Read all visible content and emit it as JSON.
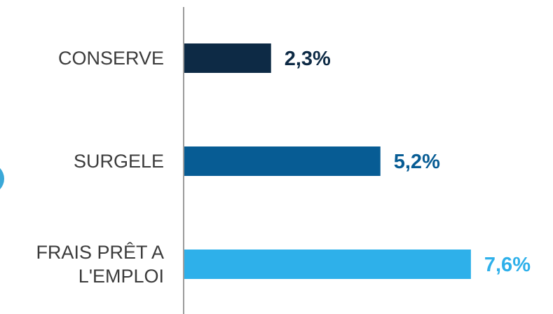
{
  "chart_data": {
    "type": "bar",
    "orientation": "horizontal",
    "categories": [
      [
        "CONSERVE"
      ],
      [
        "SURGELE"
      ],
      [
        "FRAIS PRÊT A",
        "L'EMPLOI"
      ]
    ],
    "values": [
      2.3,
      5.2,
      7.6
    ],
    "value_labels": [
      "2,3%",
      "5,2%",
      "7,6%"
    ],
    "colors": [
      "#0d2a45",
      "#075c94",
      "#2eb0ea"
    ],
    "xlim": [
      0,
      10
    ],
    "grid": false,
    "legend": "none"
  }
}
